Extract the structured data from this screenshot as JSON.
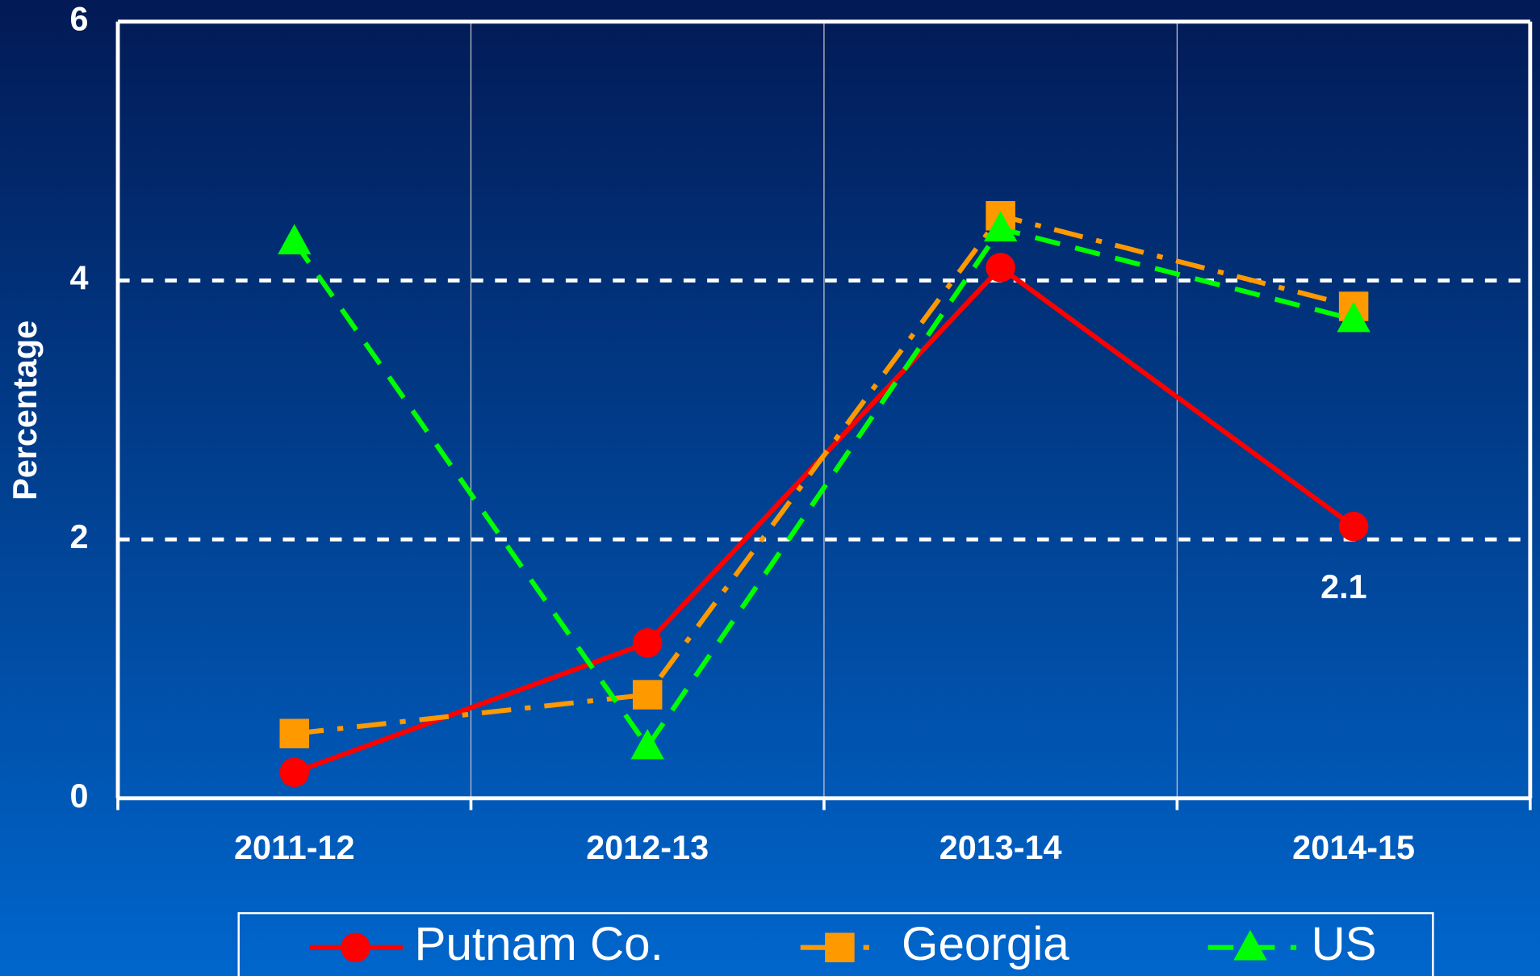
{
  "chart_data": {
    "type": "line",
    "y_label": "Percentage",
    "categories": [
      "2011-12",
      "2012-13",
      "2013-14",
      "2014-15"
    ],
    "series": [
      {
        "name": "Putnam Co.",
        "color": "#ff0000",
        "style": "solid",
        "marker": "circle",
        "values": [
          0.2,
          1.2,
          4.1,
          2.1
        ],
        "value_labels": [
          null,
          null,
          null,
          "2.1"
        ]
      },
      {
        "name": "Georgia",
        "color": "#ff9900",
        "style": "dashdot",
        "marker": "square",
        "values": [
          0.5,
          0.8,
          4.5,
          3.8
        ]
      },
      {
        "name": "US",
        "color": "#00ff00",
        "style": "dashed",
        "marker": "triangle",
        "values": [
          4.3,
          0.4,
          4.4,
          3.7
        ]
      }
    ],
    "ylim": [
      0,
      6
    ],
    "yticks": [
      0,
      2,
      4,
      6
    ],
    "grid": true,
    "legend": "bottom"
  }
}
